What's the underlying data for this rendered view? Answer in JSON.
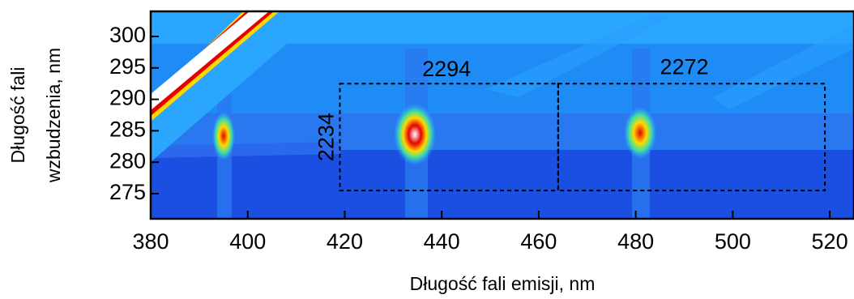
{
  "chart_data": {
    "type": "contour",
    "xlabel": "Długość fali emisji,  nm",
    "ylabel": [
      "Długość fali",
      "wzbudzenia, nm"
    ],
    "xlim": [
      380,
      525
    ],
    "ylim": [
      271,
      304
    ],
    "xticks": [
      380,
      400,
      420,
      440,
      460,
      480,
      500,
      520
    ],
    "yticks": [
      275,
      280,
      285,
      290,
      295,
      300
    ],
    "regions": [
      {
        "label": "2294",
        "x": [
          419,
          464
        ],
        "y": [
          275.5,
          292.5
        ],
        "label_x": 441,
        "label_y": 294.6
      },
      {
        "label": "2272",
        "x": [
          464,
          519
        ],
        "y": [
          275.5,
          292.5
        ],
        "label_x": 490,
        "label_y": 294.9
      }
    ],
    "annotations": [
      {
        "text": "2234",
        "x": 416.5,
        "y": 284
      }
    ]
  }
}
